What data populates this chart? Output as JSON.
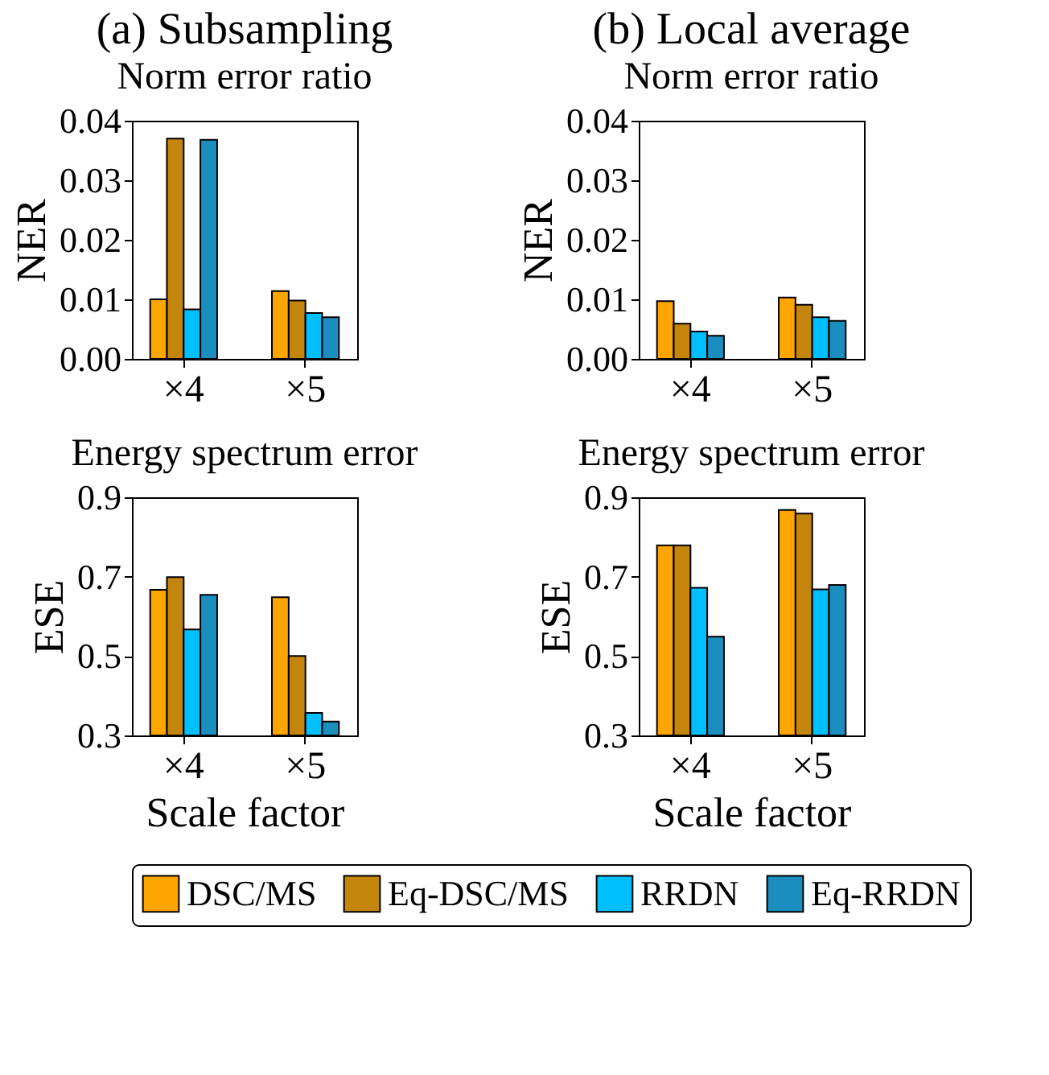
{
  "chart_data": [
    {
      "type": "bar",
      "title": "(a) Subsampling",
      "subtitle": "Norm error ratio",
      "ylabel": "NER",
      "categories": [
        "×4",
        "×5"
      ],
      "series": [
        {
          "name": "DSC/MS",
          "color": "#ffa500",
          "values": [
            0.01,
            0.0114
          ]
        },
        {
          "name": "Eq-DSC/MS",
          "color": "#c4850c",
          "values": [
            0.037,
            0.0098
          ]
        },
        {
          "name": "RRDN",
          "color": "#00bfff",
          "values": [
            0.0083,
            0.0077
          ]
        },
        {
          "name": "Eq-RRDN",
          "color": "#1a8fbf",
          "values": [
            0.0368,
            0.007
          ]
        }
      ],
      "ylim": [
        0,
        0.04
      ],
      "yticks": [
        {
          "value": 0,
          "label": "0.00"
        },
        {
          "value": 0.01,
          "label": "0.01"
        },
        {
          "value": 0.02,
          "label": "0.02"
        },
        {
          "value": 0.03,
          "label": "0.03"
        },
        {
          "value": 0.04,
          "label": "0.04"
        }
      ],
      "grid": false,
      "legend": "bottom"
    },
    {
      "type": "bar",
      "title": "(b) Local average",
      "subtitle": "Norm error ratio",
      "ylabel": "NER",
      "categories": [
        "×4",
        "×5"
      ],
      "series": [
        {
          "name": "DSC/MS",
          "color": "#ffa500",
          "values": [
            0.0097,
            0.0103
          ]
        },
        {
          "name": "Eq-DSC/MS",
          "color": "#c4850c",
          "values": [
            0.0059,
            0.0091
          ]
        },
        {
          "name": "RRDN",
          "color": "#00bfff",
          "values": [
            0.0046,
            0.007
          ]
        },
        {
          "name": "Eq-RRDN",
          "color": "#1a8fbf",
          "values": [
            0.0039,
            0.0064
          ]
        }
      ],
      "ylim": [
        0,
        0.04
      ],
      "yticks": [
        {
          "value": 0,
          "label": "0.00"
        },
        {
          "value": 0.01,
          "label": "0.01"
        },
        {
          "value": 0.02,
          "label": "0.02"
        },
        {
          "value": 0.03,
          "label": "0.03"
        },
        {
          "value": 0.04,
          "label": "0.04"
        }
      ],
      "grid": false,
      "legend": "bottom"
    },
    {
      "type": "bar",
      "title": "Energy spectrum error",
      "ylabel": "ESE",
      "xlabel": "Scale factor",
      "categories": [
        "×4",
        "×5"
      ],
      "series": [
        {
          "name": "DSC/MS",
          "color": "#ffa500",
          "values": [
            0.667,
            0.648
          ]
        },
        {
          "name": "Eq-DSC/MS",
          "color": "#c4850c",
          "values": [
            0.699,
            0.5
          ]
        },
        {
          "name": "RRDN",
          "color": "#00bfff",
          "values": [
            0.567,
            0.357
          ]
        },
        {
          "name": "Eq-RRDN",
          "color": "#1a8fbf",
          "values": [
            0.654,
            0.335
          ]
        }
      ],
      "ylim": [
        0.3,
        0.9
      ],
      "yticks": [
        0.3,
        0.5,
        0.7,
        0.9
      ],
      "grid": false,
      "legend": "bottom"
    },
    {
      "type": "bar",
      "title": "Energy spectrum error",
      "ylabel": "ESE",
      "xlabel": "Scale factor",
      "categories": [
        "×4",
        "×5"
      ],
      "series": [
        {
          "name": "DSC/MS",
          "color": "#ffa500",
          "values": [
            0.779,
            0.868
          ]
        },
        {
          "name": "Eq-DSC/MS",
          "color": "#c4850c",
          "values": [
            0.779,
            0.859
          ]
        },
        {
          "name": "RRDN",
          "color": "#00bfff",
          "values": [
            0.672,
            0.668
          ]
        },
        {
          "name": "Eq-RRDN",
          "color": "#1a8fbf",
          "values": [
            0.549,
            0.679
          ]
        }
      ],
      "ylim": [
        0.3,
        0.9
      ],
      "yticks": [
        0.3,
        0.5,
        0.7,
        0.9
      ],
      "grid": false,
      "legend": "bottom"
    }
  ]
}
